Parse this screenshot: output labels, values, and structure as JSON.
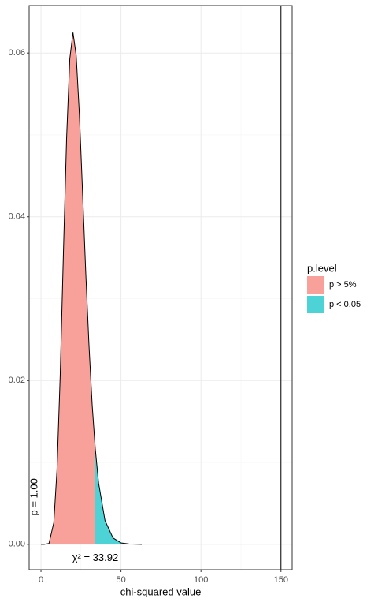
{
  "chart_data": {
    "type": "area",
    "x_label": "chi-squared value",
    "legend_title": "p.level",
    "xlim": [
      -7.4,
      157
    ],
    "ylim": [
      -0.0031,
      0.0658
    ],
    "xticks": [
      0,
      50,
      100,
      150
    ],
    "yticks": [
      {
        "value": 0,
        "label": "0.00"
      },
      {
        "value": 0.02,
        "label": "0.02"
      },
      {
        "value": 0.04,
        "label": "0.04"
      },
      {
        "value": 0.06,
        "label": "0.06"
      }
    ],
    "x_minor_grid": [
      25,
      75,
      125
    ],
    "y_minor_grid": [
      0.01,
      0.03,
      0.05
    ],
    "grid": true,
    "vline": 150,
    "series": [
      {
        "name": "p > 5%",
        "color": "#f8a19a",
        "x": [
          0,
          2,
          5,
          8,
          10,
          12,
          14,
          16,
          18,
          20,
          22,
          24,
          26,
          28,
          30,
          32,
          33.92
        ],
        "values": [
          0,
          0,
          0.000108,
          0.00265,
          0.00906,
          0.0206,
          0.0355,
          0.0496,
          0.0593,
          0.0625,
          0.0597,
          0.0525,
          0.0429,
          0.0331,
          0.0243,
          0.017,
          0.0117
        ]
      },
      {
        "name": "p < 0.05",
        "color": "#4dd2d6",
        "x": [
          33.92,
          36,
          40,
          45,
          50,
          55,
          63
        ],
        "values": [
          0.0117,
          0.00749,
          0.00291,
          0.00078,
          0.00018,
          4e-05,
          0
        ]
      }
    ],
    "annotations": [
      {
        "text": "p = 1.00",
        "x": 0,
        "y": 0.0035,
        "rotate": -90
      },
      {
        "text": "χ² = 33.92",
        "x": 33.92,
        "y": -0.0017
      }
    ]
  }
}
